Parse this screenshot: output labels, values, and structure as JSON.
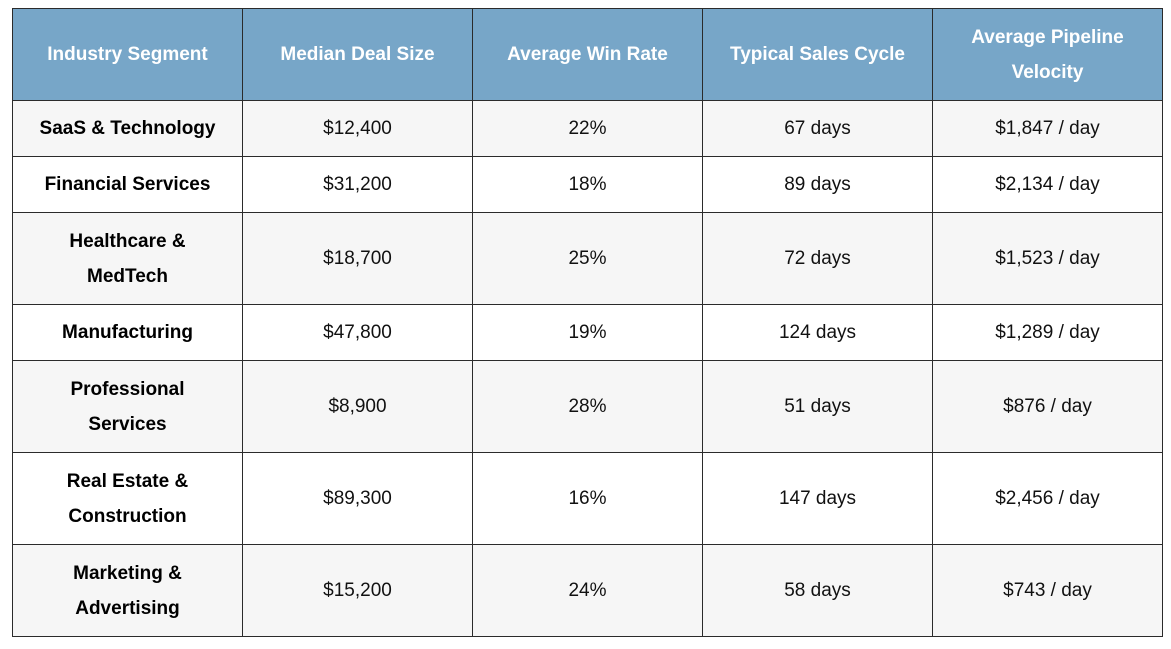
{
  "table": {
    "headers": [
      "Industry Segment",
      "Median Deal Size",
      "Average Win Rate",
      "Typical Sales Cycle",
      "Average Pipeline Velocity"
    ],
    "rows": [
      [
        "SaaS & Technology",
        "$12,400",
        "22%",
        "67 days",
        "$1,847 / day"
      ],
      [
        "Financial Services",
        "$31,200",
        "18%",
        "89 days",
        "$2,134 / day"
      ],
      [
        "Healthcare & MedTech",
        "$18,700",
        "25%",
        "72 days",
        "$1,523 / day"
      ],
      [
        "Manufacturing",
        "$47,800",
        "19%",
        "124 days",
        "$1,289 / day"
      ],
      [
        "Professional Services",
        "$8,900",
        "28%",
        "51 days",
        "$876 / day"
      ],
      [
        "Real Estate & Construction",
        "$89,300",
        "16%",
        "147 days",
        "$2,456 / day"
      ],
      [
        "Marketing & Advertising",
        "$15,200",
        "24%",
        "58 days",
        "$743 / day"
      ]
    ]
  },
  "colors": {
    "header_background": "#77a6c8",
    "header_text": "#ffffff",
    "border": "#2b2b2b",
    "row_stripe": "#f6f6f6"
  }
}
